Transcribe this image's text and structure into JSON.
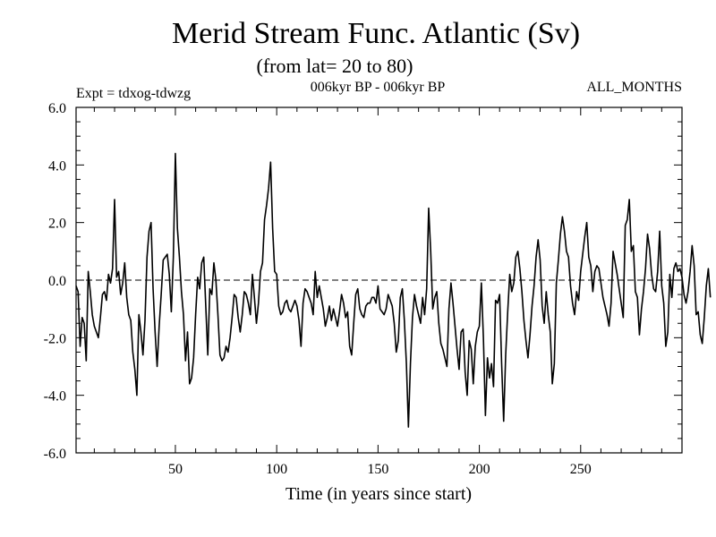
{
  "chart_data": {
    "type": "line",
    "title": "Merid Stream Func. Atlantic (Sv)",
    "subtitle": "(from lat= 20 to 80)",
    "left_note": "Expt = tdxog-tdwzg",
    "center_note": "006kyr BP - 006kyr BP",
    "right_note": "ALL_MONTHS",
    "xlabel": "Time (in years since start)",
    "ylabel": "",
    "xlim": [
      1,
      300
    ],
    "ylim": [
      -6,
      6
    ],
    "x_ticks": [
      50,
      100,
      150,
      200,
      250
    ],
    "x_tick_labels": [
      "50",
      "100",
      "150",
      "200",
      "250"
    ],
    "y_ticks": [
      -6,
      -4,
      -2,
      0,
      2,
      4,
      6
    ],
    "y_tick_labels": [
      "-6.0",
      "-4.0",
      "-2.0",
      "0.0",
      "2.0",
      "4.0",
      "6.0"
    ],
    "zero_line": "dashed",
    "series": [
      {
        "x_start": 1,
        "x_step": 1,
        "values": [
          -0.2,
          -0.4,
          -2.3,
          -1.3,
          -1.5,
          -2.8,
          0.3,
          -0.4,
          -1.2,
          -1.6,
          -1.8,
          -2.0,
          -1.3,
          -0.5,
          -0.4,
          -0.7,
          0.2,
          -0.1,
          0.4,
          2.8,
          0.1,
          0.3,
          -0.5,
          -0.1,
          0.6,
          -0.6,
          -1.2,
          -1.4,
          -2.5,
          -3.1,
          -4.0,
          -1.2,
          -1.8,
          -2.6,
          -1.4,
          0.8,
          1.7,
          2.0,
          -0.3,
          -1.8,
          -3.0,
          -1.6,
          -0.5,
          0.7,
          0.8,
          0.9,
          0.2,
          -1.1,
          0.8,
          4.4,
          1.8,
          0.8,
          -0.4,
          -1.2,
          -2.8,
          -1.8,
          -3.6,
          -3.4,
          -2.7,
          -1.2,
          0.1,
          -0.3,
          0.6,
          0.8,
          -0.9,
          -2.6,
          -0.3,
          -0.5,
          0.6,
          0.0,
          -1.2,
          -2.6,
          -2.8,
          -2.7,
          -2.3,
          -2.5,
          -2.0,
          -1.3,
          -0.5,
          -0.6,
          -1.3,
          -1.8,
          -1.2,
          -0.4,
          -0.5,
          -0.8,
          -1.2,
          0.2,
          -0.6,
          -1.5,
          -0.8,
          0.3,
          0.6,
          2.1,
          2.6,
          3.2,
          4.1,
          1.8,
          0.3,
          0.2,
          -0.9,
          -1.2,
          -1.1,
          -0.8,
          -0.7,
          -1.0,
          -1.1,
          -0.9,
          -0.7,
          -0.9,
          -1.4,
          -2.3,
          -0.8,
          -0.3,
          -0.4,
          -0.6,
          -0.8,
          -1.2,
          0.3,
          -0.6,
          -0.2,
          -0.6,
          -1.0,
          -1.6,
          -1.3,
          -0.9,
          -1.4,
          -1.0,
          -1.3,
          -1.6,
          -1.1,
          -0.5,
          -0.8,
          -1.3,
          -1.1,
          -2.3,
          -2.6,
          -1.5,
          -0.5,
          -0.3,
          -1.0,
          -1.2,
          -1.3,
          -0.9,
          -0.8,
          -0.8,
          -0.6,
          -0.6,
          -0.8,
          -0.2,
          -1.0,
          -1.1,
          -1.2,
          -1.0,
          -0.5,
          -0.7,
          -0.9,
          -1.5,
          -2.5,
          -2.1,
          -0.6,
          -0.3,
          -1.4,
          -2.9,
          -5.1,
          -2.9,
          -1.3,
          -0.5,
          -0.9,
          -1.2,
          -1.5,
          -0.6,
          -1.2,
          -0.3,
          2.5,
          1.0,
          -1.0,
          -0.6,
          -0.4,
          -1.5,
          -2.2,
          -2.4,
          -2.7,
          -3.0,
          -1.0,
          -0.1,
          -0.8,
          -1.6,
          -2.4,
          -3.1,
          -1.8,
          -1.7,
          -3.2,
          -4.0,
          -2.1,
          -2.4,
          -3.6,
          -2.3,
          -1.8,
          -1.6,
          -0.1,
          -2.0,
          -4.7,
          -2.7,
          -3.4,
          -2.9,
          -3.7,
          -0.7,
          -0.8,
          -0.5,
          -2.9,
          -4.9,
          -2.6,
          -1.1,
          0.2,
          -0.4,
          -0.1,
          0.8,
          1.0,
          0.4,
          -0.4,
          -1.4,
          -2.1,
          -2.7,
          -1.9,
          -0.9,
          -0.2,
          0.8,
          1.4,
          0.7,
          -0.9,
          -1.5,
          -0.4,
          -1.2,
          -1.8,
          -3.6,
          -2.9,
          -0.1,
          0.7,
          1.6,
          2.2,
          1.7,
          1.0,
          0.8,
          -0.2,
          -0.8,
          -1.2,
          -0.4,
          -0.7,
          0.3,
          0.9,
          1.5,
          2.0,
          0.8,
          0.5,
          -0.4,
          0.3,
          0.5,
          0.4,
          -0.1,
          -0.6,
          -0.9,
          -1.2,
          -1.6,
          -0.8,
          1.0,
          0.6,
          0.2,
          -0.3,
          -0.8,
          -1.3,
          1.9,
          2.1,
          2.8,
          1.0,
          1.2,
          -0.4,
          -0.6,
          -1.9,
          -1.0,
          -0.4,
          0.4,
          1.6,
          1.1,
          0.2,
          -0.3,
          -0.4,
          0.3,
          1.7,
          -0.2,
          -0.8,
          -2.3,
          -1.8,
          0.2,
          -0.6,
          0.4,
          0.6,
          0.3,
          0.4,
          0.1,
          -0.5,
          -0.8,
          -0.4,
          0.3,
          1.2,
          0.5,
          -1.2,
          -1.1,
          -1.9,
          -2.2,
          -1.3,
          -0.2,
          0.4,
          -0.6
        ]
      }
    ]
  }
}
